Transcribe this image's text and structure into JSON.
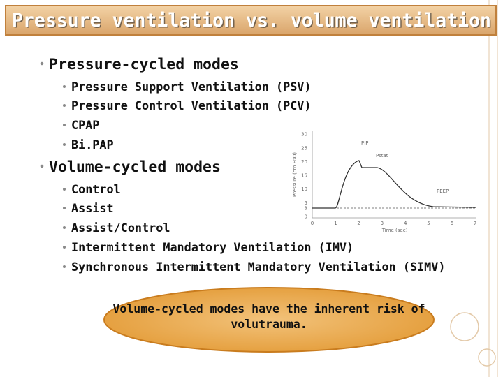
{
  "title": "Pressure ventilation vs. volume ventilation",
  "sections": [
    {
      "heading": "Pressure-cycled modes",
      "items": [
        "Pressure Support Ventilation (PSV)",
        "Pressure Control Ventilation (PCV)",
        "CPAP",
        "Bi.PAP"
      ]
    },
    {
      "heading": "Volume-cycled modes",
      "items": [
        "Control",
        "Assist",
        "Assist/Control",
        "Intermittent Mandatory Ventilation (IMV)",
        "Synchronous Intermittent Mandatory Ventilation (SIMV)"
      ]
    }
  ],
  "figure": {
    "y_axis_label": "Pressure (cm H₂O)",
    "x_axis_label": "Time (sec)",
    "yticks": [
      0,
      3,
      5,
      10,
      15,
      20,
      25,
      30
    ],
    "xticks": [
      0,
      1,
      2,
      3,
      4,
      5,
      6,
      7
    ],
    "annotations": [
      "PIP",
      "Pstat",
      "PEEP"
    ]
  },
  "callout": [
    "Volume-cycled modes have the inherent risk of",
    "volutrauma."
  ]
}
